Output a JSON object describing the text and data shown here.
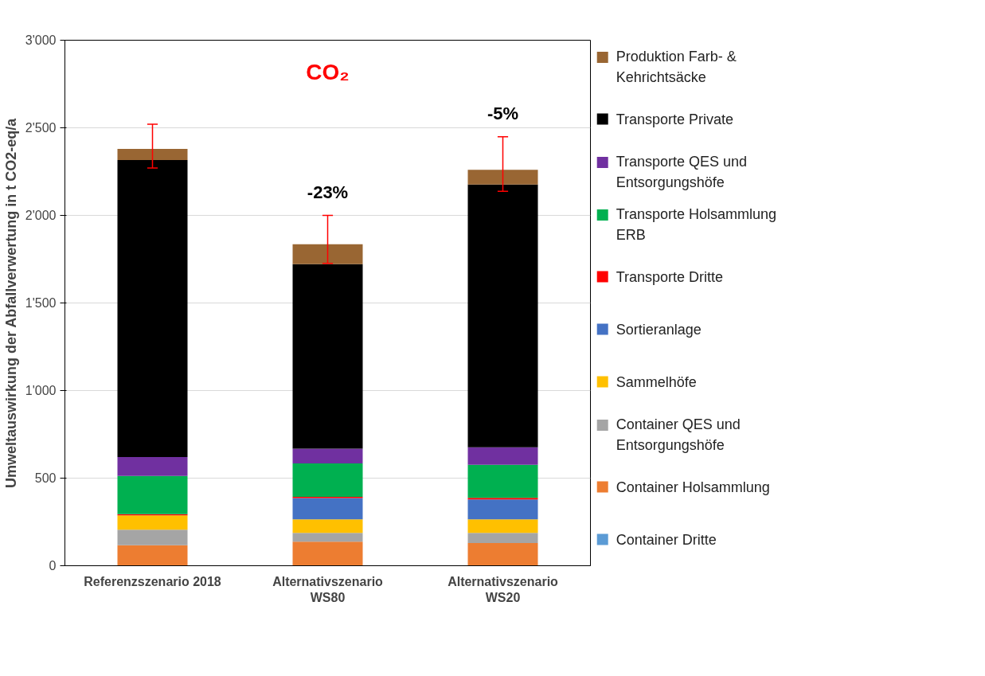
{
  "chart_data": {
    "type": "bar",
    "title": "CO₂",
    "ylabel": "Umweltauswirkung der Abfallverwertung in t CO2-eq/a",
    "categories": [
      "Referenzszenario 2018",
      "Alternativszenario WS80",
      "Alternativszenario WS20"
    ],
    "stacked": true,
    "legend": "right",
    "grid": "y",
    "ylim": [
      0,
      3000
    ],
    "yticks": [
      0,
      {
        "value": 500,
        "label": "500"
      },
      {
        "value": 1000,
        "label": "1'000"
      },
      {
        "value": 1500,
        "label": "1'500"
      },
      {
        "value": 2000,
        "label": "2'000"
      },
      {
        "value": 2500,
        "label": "2'500"
      },
      {
        "value": 3000,
        "label": "3'000"
      }
    ],
    "series": [
      {
        "name": "Container Dritte",
        "color": "#5b9bd5",
        "values": [
          0,
          0,
          0
        ]
      },
      {
        "name": "Container Holsammlung",
        "color": "#ed7d31",
        "values": [
          117,
          138,
          130
        ]
      },
      {
        "name": "Container QES und Entsorgungshöfe",
        "color": "#a5a5a5",
        "values": [
          89,
          50,
          58
        ]
      },
      {
        "name": "Sammelhöfe",
        "color": "#ffc000",
        "values": [
          82,
          77,
          77
        ]
      },
      {
        "name": "Sortieranlage",
        "color": "#4472c4",
        "values": [
          0,
          121,
          113
        ]
      },
      {
        "name": "Transporte Dritte",
        "color": "#ff0000",
        "values": [
          6,
          7,
          9
        ]
      },
      {
        "name": "Transporte Holsammlung ERB",
        "color": "#00b050",
        "values": [
          218,
          191,
          189
        ]
      },
      {
        "name": "Transporte QES und Entsorgungshöfe",
        "color": "#7030a0",
        "values": [
          108,
          84,
          100
        ]
      },
      {
        "name": "Transporte Private",
        "color": "#000000",
        "values": [
          1696,
          1054,
          1500
        ]
      },
      {
        "name": "Produktion Farb- & Kehrichtsäcke",
        "color": "#996633",
        "values": [
          64,
          113,
          84
        ],
        "errors": [
          [
            2270,
            2520
          ],
          [
            1726,
            2000
          ],
          [
            2137,
            2449
          ]
        ]
      }
    ],
    "annotations": [
      "-23%",
      "-5%"
    ]
  }
}
